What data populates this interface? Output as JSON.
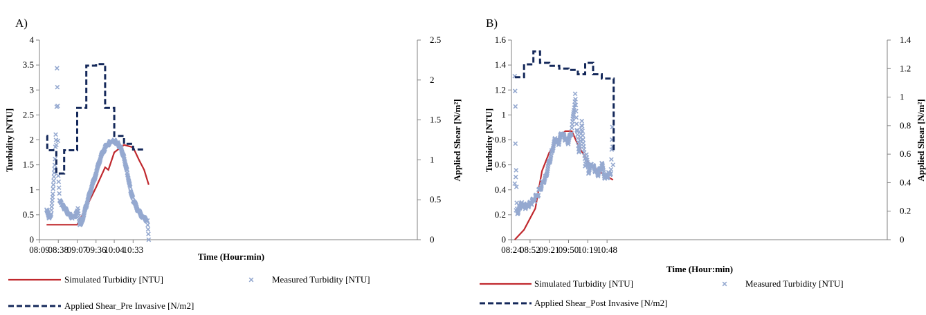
{
  "chart_data": [
    {
      "type": "line",
      "panel_label": "A)",
      "xlabel": "Time (Hour:min)",
      "ylabel": "Turbidity [NTU]",
      "y2label": "Applied Shear [N/m²]",
      "x_ticks": [
        "08:09",
        "08:38",
        "09:07",
        "09:36",
        "10:04",
        "10:33"
      ],
      "x_range_minutes_since_midnight": [
        489,
        1070
      ],
      "xlim": [
        "08:09",
        "10:57"
      ],
      "ylim": [
        0,
        4
      ],
      "y_ticks": [
        "0",
        "0.5",
        "1",
        "1.5",
        "2",
        "2.5",
        "3",
        "3.5",
        "4"
      ],
      "y2lim": [
        0,
        2.5
      ],
      "y2_ticks": [
        "0",
        "0.5",
        "1",
        "1.5",
        "2",
        "2.5"
      ],
      "grid": false,
      "legend_position": "bottom",
      "legend_labels": {
        "simulated": "Simulated Turbidity [NTU]",
        "measured": "Measured Turbidity [NTU]",
        "shear": "Applied Shear_Pre Invasive [N/m2]"
      },
      "series": [
        {
          "name": "Simulated Turbidity [NTU]",
          "axis": "left",
          "style": "line",
          "color": "#C0282D",
          "x": [
            "08:20",
            "09:07",
            "09:21",
            "09:36",
            "09:50",
            "09:55",
            "10:04",
            "10:19",
            "10:33",
            "10:42",
            "10:50",
            "10:57"
          ],
          "values": [
            0.3,
            0.3,
            0.65,
            1.05,
            1.45,
            1.4,
            1.75,
            1.9,
            1.85,
            1.6,
            1.4,
            1.1
          ]
        },
        {
          "name": "Measured Turbidity [NTU]",
          "axis": "left",
          "style": "markers",
          "color": "#95A9D0",
          "x": [
            "08:20",
            "08:24",
            "08:27",
            "08:30",
            "08:33",
            "08:34",
            "08:35",
            "08:36",
            "08:37",
            "08:38",
            "08:40",
            "08:43",
            "08:48",
            "08:55",
            "09:00",
            "09:05",
            "09:08",
            "09:11",
            "09:15",
            "09:21",
            "09:28",
            "09:36",
            "09:43",
            "09:50",
            "09:57",
            "10:04",
            "10:09",
            "10:14",
            "10:19",
            "10:24",
            "10:29",
            "10:33",
            "10:40",
            "10:48",
            "10:55",
            "10:57"
          ],
          "values": [
            0.6,
            0.42,
            0.5,
            1.0,
            1.6,
            2.1,
            1.9,
            3.45,
            2.7,
            1.3,
            0.8,
            0.7,
            0.62,
            0.5,
            0.44,
            0.5,
            0.62,
            0.3,
            0.4,
            0.68,
            1.0,
            1.33,
            1.65,
            1.85,
            1.95,
            1.98,
            1.93,
            1.85,
            1.65,
            1.35,
            1.0,
            0.8,
            0.6,
            0.45,
            0.38,
            0.0
          ]
        },
        {
          "name": "Applied Shear_Pre Invasive [N/m2]",
          "axis": "right",
          "style": "dashed-step",
          "color": "#14285A",
          "x": [
            "08:20",
            "08:21",
            "08:35",
            "08:47",
            "09:07",
            "09:21",
            "09:36",
            "09:50",
            "10:04",
            "10:19",
            "10:33",
            "10:51"
          ],
          "values": [
            1.3,
            1.12,
            0.83,
            1.12,
            1.65,
            2.18,
            2.2,
            1.65,
            1.3,
            1.2,
            1.13,
            1.13
          ]
        }
      ]
    },
    {
      "type": "line",
      "panel_label": "B)",
      "xlabel": "Time (Hour:min)",
      "ylabel": "Turbidity [NTU]",
      "y2label": "Applied Shear [N/m²]",
      "x_ticks": [
        "08:24",
        "08:52",
        "09:21",
        "09:50",
        "10:19",
        "10:48"
      ],
      "x_range_minutes_since_midnight": [
        504,
        1070
      ],
      "xlim": [
        "08:24",
        "10:58"
      ],
      "ylim": [
        0,
        1.6
      ],
      "y_ticks": [
        "0",
        "0.2",
        "0.4",
        "0.6",
        "0.8",
        "1",
        "1.2",
        "1.4",
        "1.6"
      ],
      "y2lim": [
        0,
        1.4
      ],
      "y2_ticks": [
        "0",
        "0.2",
        "0.4",
        "0.6",
        "0.8",
        "1",
        "1.2",
        "1.4"
      ],
      "grid": false,
      "legend_position": "bottom",
      "legend_labels": {
        "simulated": "Simulated Turbidity [NTU]",
        "measured": "Measured Turbidity [NTU]",
        "shear": "Applied Shear_Post Invasive [N/m2]"
      },
      "series": [
        {
          "name": "Simulated Turbidity [NTU]",
          "axis": "left",
          "style": "line",
          "color": "#C0282D",
          "x": [
            "08:29",
            "08:43",
            "09:00",
            "09:10",
            "09:21",
            "09:33",
            "09:45",
            "09:55",
            "10:05",
            "10:20",
            "10:35",
            "10:50",
            "10:57"
          ],
          "values": [
            0.0,
            0.08,
            0.25,
            0.55,
            0.7,
            0.8,
            0.87,
            0.87,
            0.75,
            0.62,
            0.55,
            0.5,
            0.48
          ]
        },
        {
          "name": "Measured Turbidity [NTU]",
          "axis": "left",
          "style": "markers",
          "color": "#95A9D0",
          "x": [
            "08:29",
            "08:29",
            "08:30",
            "08:30",
            "08:31",
            "08:31",
            "08:32",
            "08:33",
            "08:36",
            "08:40",
            "08:45",
            "08:50",
            "08:55",
            "09:00",
            "09:05",
            "09:10",
            "09:15",
            "09:21",
            "09:25",
            "09:30",
            "09:35",
            "09:40",
            "09:45",
            "09:50",
            "09:55",
            "10:00",
            "10:03",
            "10:06",
            "10:10",
            "10:15",
            "10:17",
            "10:20",
            "10:25",
            "10:30",
            "10:35",
            "10:40",
            "10:45",
            "10:50",
            "10:54",
            "10:56",
            "10:57"
          ],
          "values": [
            0.45,
            1.3,
            1.05,
            0.75,
            0.22,
            0.55,
            0.3,
            0.22,
            0.27,
            0.28,
            0.26,
            0.27,
            0.3,
            0.33,
            0.38,
            0.45,
            0.5,
            0.62,
            0.72,
            0.8,
            0.78,
            0.85,
            0.8,
            0.78,
            0.88,
            1.15,
            0.85,
            0.7,
            0.95,
            0.6,
            0.7,
            0.55,
            0.6,
            0.55,
            0.52,
            0.6,
            0.5,
            0.52,
            0.55,
            0.9,
            0.6
          ]
        },
        {
          "name": "Applied Shear_Post Invasive [N/m2]",
          "axis": "right",
          "style": "dashed-step",
          "color": "#14285A",
          "x": [
            "08:29",
            "08:43",
            "08:57",
            "09:07",
            "09:21",
            "09:36",
            "09:50",
            "10:04",
            "10:15",
            "10:27",
            "10:40",
            "10:57",
            "10:58"
          ],
          "values": [
            1.14,
            1.23,
            1.32,
            1.24,
            1.22,
            1.2,
            1.19,
            1.16,
            1.24,
            1.16,
            1.13,
            1.13,
            0.62
          ]
        }
      ]
    }
  ]
}
